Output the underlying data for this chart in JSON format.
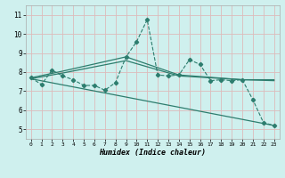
{
  "xlabel": "Humidex (Indice chaleur)",
  "bg_color": "#cff0ee",
  "grid_color": "#ddbbbb",
  "line_color": "#2d7d6e",
  "xlim": [
    -0.5,
    23.5
  ],
  "ylim": [
    4.5,
    11.5
  ],
  "xticks": [
    0,
    1,
    2,
    3,
    4,
    5,
    6,
    7,
    8,
    9,
    10,
    11,
    12,
    13,
    14,
    15,
    16,
    17,
    18,
    19,
    20,
    21,
    22,
    23
  ],
  "yticks": [
    5,
    6,
    7,
    8,
    9,
    10,
    11
  ],
  "line1_x": [
    0,
    1,
    2,
    3,
    4,
    5,
    6,
    7,
    8,
    9,
    10,
    11,
    12,
    13,
    14,
    15,
    16,
    17,
    18,
    19,
    20,
    21,
    22,
    23
  ],
  "line1_y": [
    7.7,
    7.35,
    8.1,
    7.8,
    7.6,
    7.3,
    7.3,
    7.05,
    7.45,
    8.8,
    9.6,
    10.75,
    7.85,
    7.8,
    7.85,
    8.65,
    8.4,
    7.55,
    7.6,
    7.55,
    7.6,
    6.55,
    5.35,
    5.2
  ],
  "line2_x": [
    0,
    3,
    9,
    14,
    20,
    23
  ],
  "line2_y": [
    7.7,
    8.05,
    8.8,
    7.85,
    7.6,
    7.6
  ],
  "line3_x": [
    0,
    3,
    9,
    14,
    20,
    23
  ],
  "line3_y": [
    7.65,
    7.95,
    8.6,
    7.8,
    7.6,
    7.55
  ],
  "line4_x": [
    0,
    23
  ],
  "line4_y": [
    7.65,
    5.2
  ]
}
